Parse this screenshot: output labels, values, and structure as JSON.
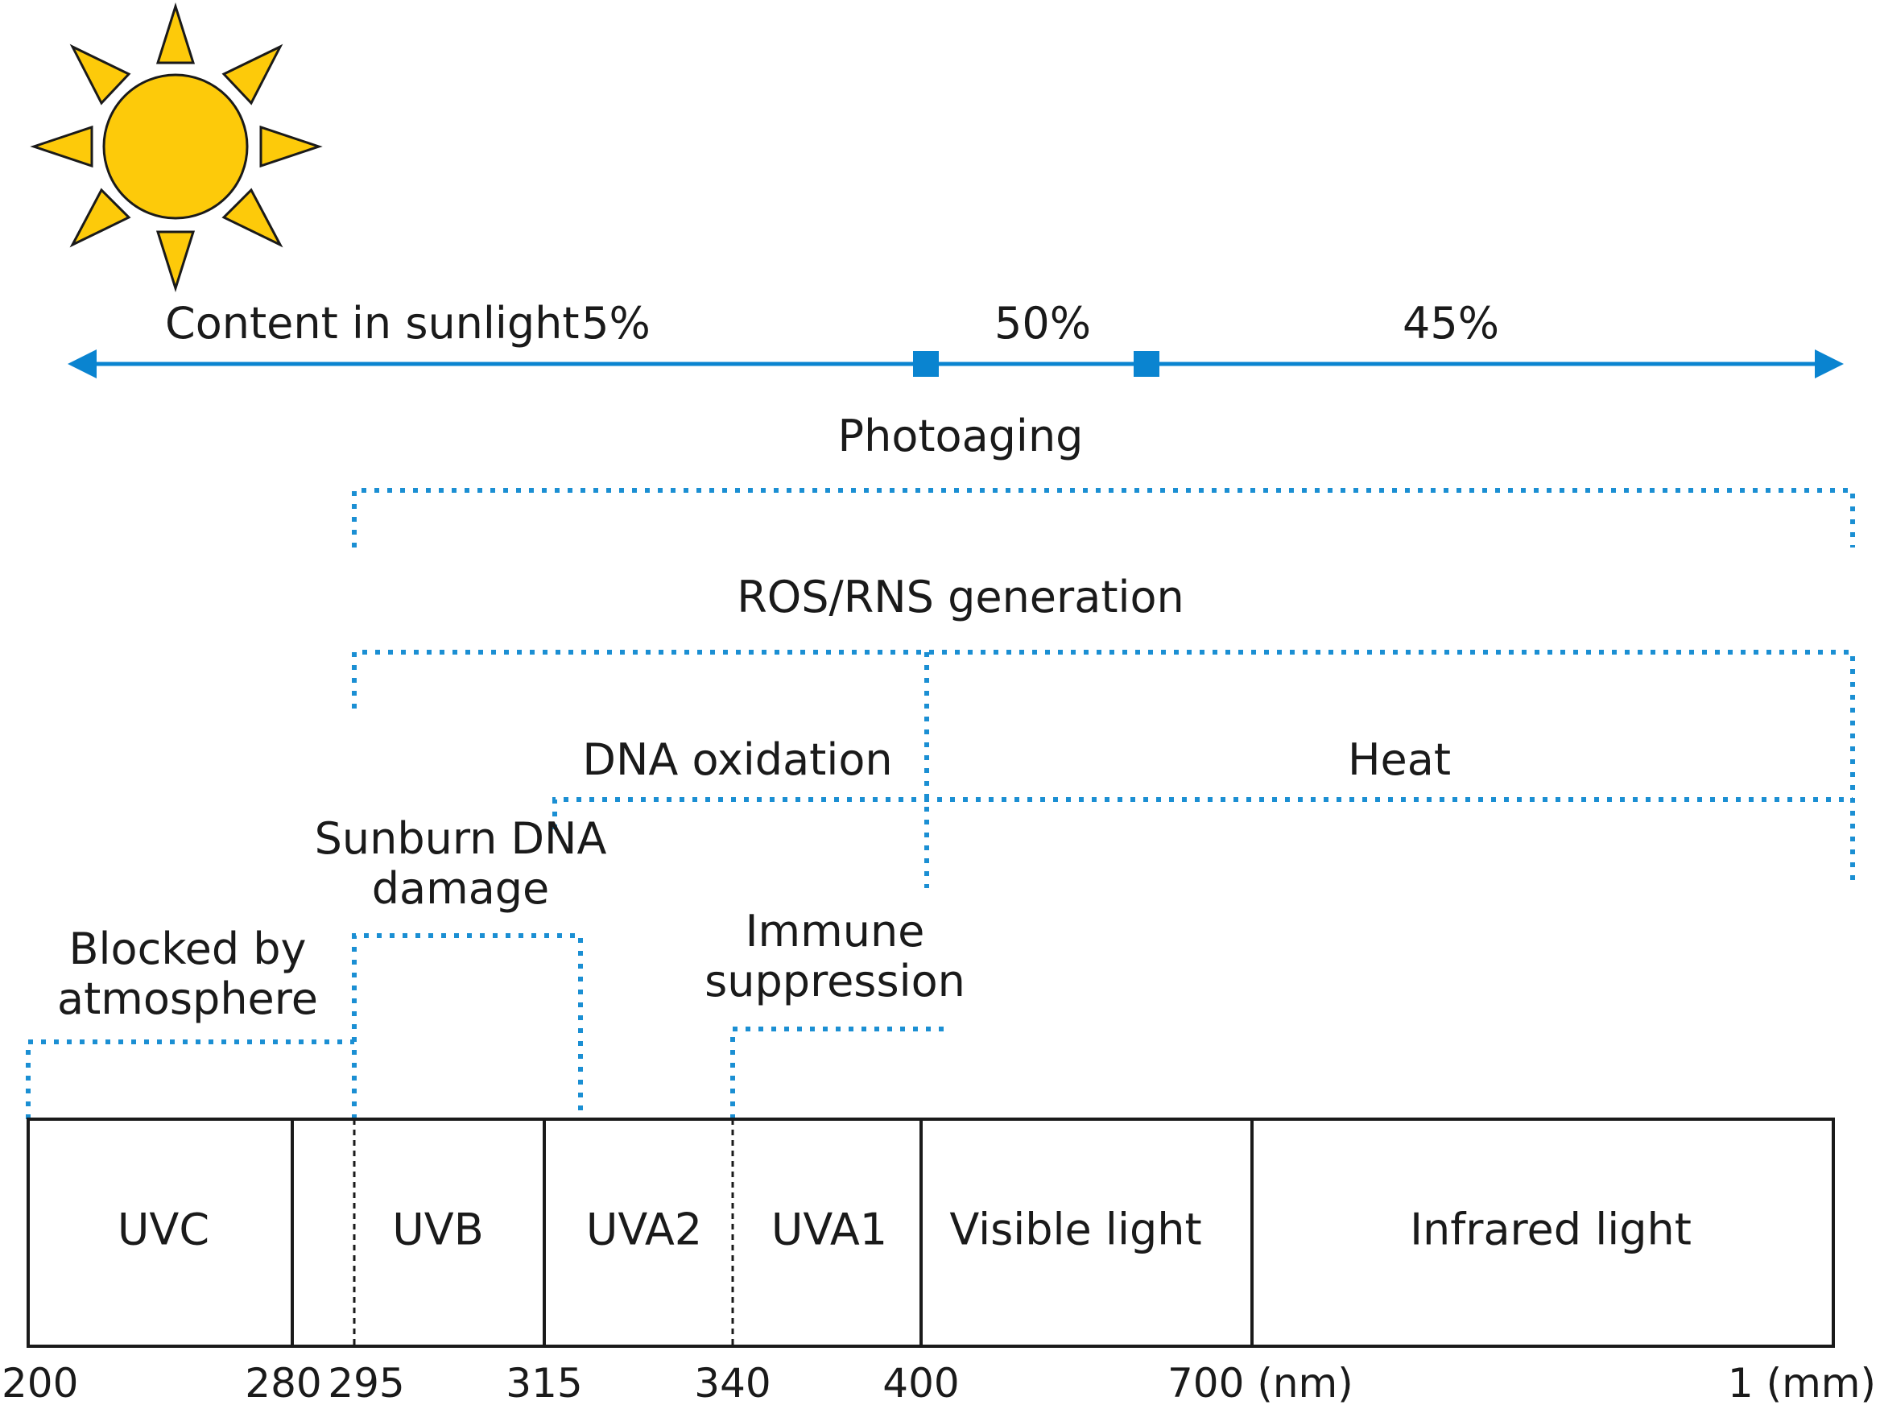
{
  "content_row": {
    "heading": "Content in sunlight",
    "percentages": [
      "5%",
      "50%",
      "45%"
    ],
    "accent_color": "#0a84d0"
  },
  "effects": {
    "photoaging": "Photoaging",
    "ros_rns": "ROS/RNS generation",
    "dna_oxidation": "DNA oxidation",
    "heat": "Heat",
    "sunburn": [
      "Sunburn DNA",
      "damage"
    ],
    "immune": [
      "Immune",
      "suppression"
    ],
    "blocked": [
      "Blocked by",
      "atmosphere"
    ],
    "line_color": "#1b8fd3"
  },
  "spectrum": {
    "bands": [
      "UVC",
      "UVB",
      "UVA2",
      "UVA1",
      "Visible light",
      "Infrared light"
    ]
  },
  "scale": {
    "ticks": [
      "200",
      "280",
      "295",
      "315",
      "340",
      "400",
      "700 (nm)",
      "1 (mm)"
    ]
  },
  "sun_icon": {
    "color": "#fdca0a",
    "outline": "#1a1a1a"
  }
}
